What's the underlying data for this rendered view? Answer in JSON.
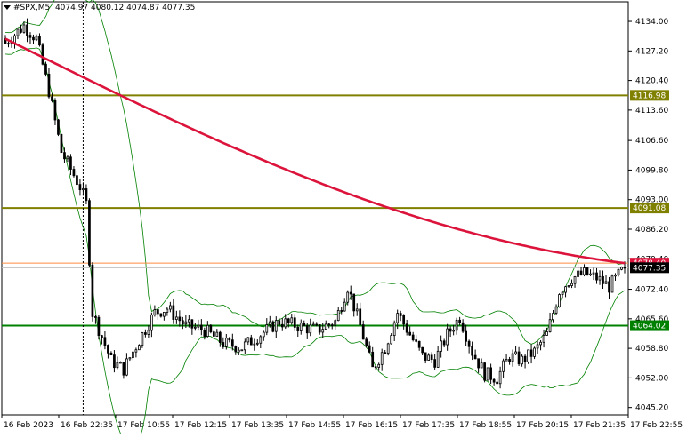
{
  "header": {
    "symbol": "#SPX,M5",
    "ohlc": "4074.97 4080.12 4074.87 4077.35"
  },
  "chart_data": {
    "type": "candlestick",
    "ylim": [
      4043.5,
      4138.5
    ],
    "y_ticks": [
      "4134.00",
      "4127.20",
      "4120.40",
      "4113.60",
      "4106.60",
      "4099.80",
      "4093.00",
      "4086.20",
      "4079.40",
      "4072.40",
      "4065.60",
      "4058.80",
      "4052.00",
      "4045.20"
    ],
    "x_ticks": [
      "16 Feb 2023",
      "16 Feb 22:35",
      "17 Feb 10:55",
      "17 Feb 12:15",
      "17 Feb 13:35",
      "17 Feb 14:55",
      "17 Feb 16:15",
      "17 Feb 17:35",
      "17 Feb 18:55",
      "17 Feb 20:15",
      "17 Feb 21:35",
      "17 Feb 22:55"
    ],
    "levels": [
      {
        "label": "4116.98",
        "value": 4116.98,
        "color": "#808000"
      },
      {
        "label": "4091.08",
        "value": 4091.08,
        "color": "#808000"
      },
      {
        "label": "4064.02",
        "value": 4064.02,
        "color": "#008000"
      }
    ],
    "ma_label": "4078.40",
    "price_label": "4077.35",
    "price": 4077.35,
    "ma_value": 4078.4,
    "ma_start": 4130.0,
    "candle_count": 200,
    "key_closes": [
      [
        0,
        4129
      ],
      [
        6,
        4133
      ],
      [
        10,
        4130
      ],
      [
        14,
        4118
      ],
      [
        18,
        4104
      ],
      [
        24,
        4096
      ],
      [
        26,
        4092
      ],
      [
        28,
        4067
      ],
      [
        34,
        4056
      ],
      [
        38,
        4054
      ],
      [
        44,
        4062
      ],
      [
        48,
        4067
      ],
      [
        52,
        4068
      ],
      [
        58,
        4064
      ],
      [
        64,
        4063
      ],
      [
        70,
        4060
      ],
      [
        76,
        4059
      ],
      [
        82,
        4062
      ],
      [
        88,
        4065
      ],
      [
        94,
        4064
      ],
      [
        100,
        4063
      ],
      [
        106,
        4065
      ],
      [
        110,
        4073
      ],
      [
        114,
        4064
      ],
      [
        118,
        4054
      ],
      [
        122,
        4059
      ],
      [
        126,
        4067
      ],
      [
        130,
        4062
      ],
      [
        134,
        4057
      ],
      [
        138,
        4056
      ],
      [
        142,
        4062
      ],
      [
        146,
        4066
      ],
      [
        150,
        4058
      ],
      [
        154,
        4053
      ],
      [
        158,
        4052
      ],
      [
        162,
        4057
      ],
      [
        166,
        4056
      ],
      [
        170,
        4058
      ],
      [
        174,
        4062
      ],
      [
        178,
        4072
      ],
      [
        182,
        4075
      ],
      [
        186,
        4076
      ],
      [
        190,
        4075
      ],
      [
        194,
        4073
      ],
      [
        199,
        4077.35
      ]
    ],
    "band_width": 8,
    "grid": false
  },
  "colors": {
    "candle": "#000000",
    "ma": "#dc143c",
    "bands": "#008000",
    "price_line": "#ff8c42",
    "price_label_bg": "#000000",
    "ma_label_bg": "#dc143c"
  }
}
